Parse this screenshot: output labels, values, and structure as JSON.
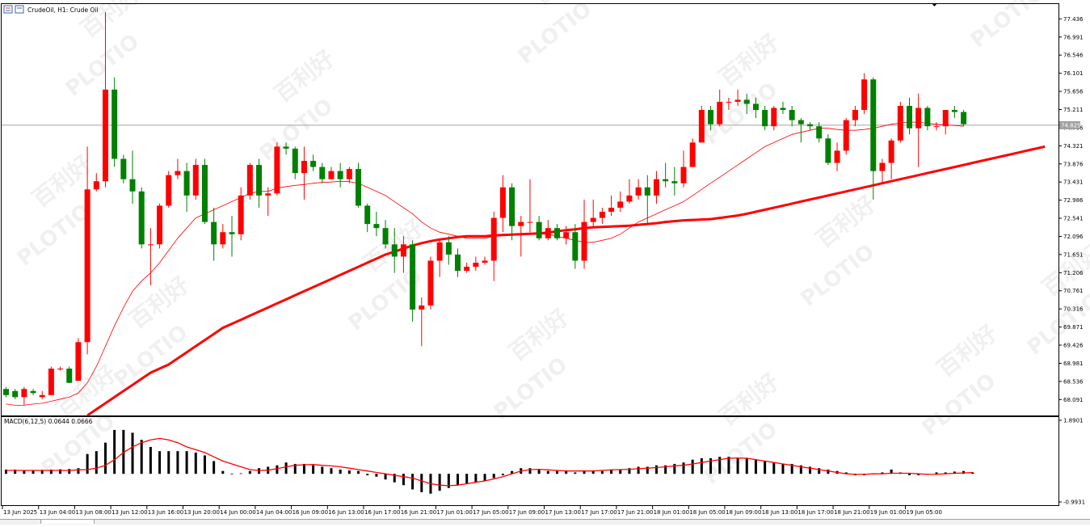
{
  "window": {
    "symbol_title": "CrudeOil, H1:  Crude Oil",
    "current_price": "74.825"
  },
  "watermark": {
    "brand": "PLOTIO",
    "cn": "百利好"
  },
  "colors": {
    "bull": "#ff0000",
    "bear": "#008000",
    "ma_thick": "#ff0000",
    "ma_thin": "#ff0000",
    "macd_hist": "#000000",
    "macd_signal": "#ff0000",
    "price_line": "#a0a0a0",
    "price_tag_bg": "#a0a0a0"
  },
  "chart_data": [
    {
      "type": "candlestick",
      "title": "CrudeOil, H1:  Crude Oil",
      "ylim": [
        67.7,
        77.8
      ],
      "y_ticks": [
        "77.436",
        "76.991",
        "76.546",
        "76.101",
        "75.656",
        "75.211",
        "74.766",
        "74.321",
        "73.876",
        "73.431",
        "72.986",
        "72.541",
        "72.096",
        "71.651",
        "71.206",
        "70.761",
        "70.316",
        "69.871",
        "69.426",
        "68.981",
        "68.536",
        "68.091"
      ],
      "x_labels": [
        "13 Jun 2025",
        "13 Jun 04:00",
        "13 Jun 08:00",
        "13 Jun 12:00",
        "13 Jun 16:00",
        "13 Jun 20:00",
        "14 Jun 00:00",
        "14 Jun 04:00",
        "16 Jun 09:00",
        "16 Jun 13:00",
        "16 Jun 17:00",
        "16 Jun 21:00",
        "17 Jun 01:00",
        "17 Jun 05:00",
        "17 Jun 09:00",
        "17 Jun 13:00",
        "17 Jun 17:00",
        "17 Jun 21:00",
        "18 Jun 01:00",
        "18 Jun 05:00",
        "18 Jun 09:00",
        "18 Jun 13:00",
        "18 Jun 17:00",
        "18 Jun 21:00",
        "19 Jun 01:00",
        "19 Jun 05:00"
      ],
      "current_price": 74.825,
      "candles": [
        [
          68.35,
          68.2,
          68.4,
          68.15
        ],
        [
          68.3,
          68.15,
          68.35,
          68.1
        ],
        [
          68.15,
          68.35,
          68.4,
          67.95
        ],
        [
          68.3,
          68.25,
          68.35,
          68.2
        ],
        [
          68.15,
          68.2,
          68.3,
          68.1
        ],
        [
          68.2,
          68.85,
          68.9,
          68.2
        ],
        [
          68.85,
          68.85,
          68.9,
          68.8
        ],
        [
          68.85,
          68.5,
          68.9,
          68.5
        ],
        [
          68.55,
          69.5,
          69.6,
          68.55
        ],
        [
          69.5,
          73.25,
          74.3,
          69.2
        ],
        [
          73.25,
          73.45,
          73.65,
          73.2
        ],
        [
          73.45,
          75.7,
          77.6,
          73.3
        ],
        [
          75.7,
          74.0,
          76.0,
          73.8
        ],
        [
          74.0,
          73.5,
          74.1,
          73.4
        ],
        [
          73.5,
          73.2,
          74.2,
          72.9
        ],
        [
          73.2,
          71.9,
          73.3,
          71.8
        ],
        [
          71.9,
          71.9,
          72.3,
          70.9
        ],
        [
          71.9,
          72.85,
          72.9,
          71.8
        ],
        [
          72.85,
          73.6,
          73.7,
          72.8
        ],
        [
          73.6,
          73.7,
          74.0,
          73.5
        ],
        [
          73.7,
          73.1,
          73.9,
          72.7
        ],
        [
          73.1,
          73.85,
          74.0,
          73.0
        ],
        [
          73.85,
          72.45,
          74.0,
          72.4
        ],
        [
          72.45,
          71.9,
          72.8,
          71.5
        ],
        [
          71.9,
          72.2,
          72.4,
          71.8
        ],
        [
          72.2,
          72.15,
          72.6,
          71.6
        ],
        [
          72.15,
          73.1,
          73.3,
          72.0
        ],
        [
          73.1,
          73.85,
          73.9,
          73.0
        ],
        [
          73.85,
          73.1,
          74.0,
          72.8
        ],
        [
          73.1,
          73.15,
          73.3,
          72.6
        ],
        [
          73.15,
          74.3,
          74.4,
          73.1
        ],
        [
          74.3,
          74.25,
          74.4,
          74.1
        ],
        [
          74.25,
          73.65,
          74.3,
          73.5
        ],
        [
          73.65,
          73.95,
          74.3,
          73.0
        ],
        [
          73.95,
          73.8,
          74.1,
          73.7
        ],
        [
          73.8,
          73.5,
          73.9,
          73.4
        ],
        [
          73.5,
          73.7,
          73.8,
          73.5
        ],
        [
          73.7,
          73.5,
          73.9,
          73.3
        ],
        [
          73.5,
          73.75,
          73.8,
          73.4
        ],
        [
          73.75,
          72.85,
          73.9,
          72.8
        ],
        [
          72.85,
          72.4,
          72.9,
          72.2
        ],
        [
          72.4,
          72.3,
          72.7,
          72.1
        ],
        [
          72.3,
          71.9,
          72.5,
          71.8
        ],
        [
          71.9,
          71.6,
          72.3,
          71.2
        ],
        [
          71.6,
          71.9,
          72.1,
          71.2
        ],
        [
          71.9,
          70.3,
          72.0,
          70.0
        ],
        [
          70.3,
          70.4,
          70.6,
          69.4
        ],
        [
          70.4,
          71.5,
          71.6,
          70.3
        ],
        [
          71.5,
          71.95,
          72.0,
          71.1
        ],
        [
          71.95,
          71.65,
          72.1,
          71.4
        ],
        [
          71.65,
          71.25,
          71.8,
          71.1
        ],
        [
          71.25,
          71.35,
          71.45,
          71.2
        ],
        [
          71.35,
          71.45,
          71.6,
          71.25
        ],
        [
          71.45,
          71.5,
          71.6,
          71.4
        ],
        [
          71.5,
          72.55,
          72.7,
          71.0
        ],
        [
          72.55,
          73.3,
          73.6,
          72.2
        ],
        [
          73.3,
          72.35,
          73.4,
          72.0
        ],
        [
          72.35,
          72.45,
          72.6,
          71.6
        ],
        [
          72.45,
          72.45,
          73.5,
          72.2
        ],
        [
          72.45,
          72.05,
          72.6,
          72.0
        ],
        [
          72.05,
          72.3,
          72.5,
          72.0
        ],
        [
          72.3,
          72.05,
          72.4,
          72.0
        ],
        [
          72.05,
          72.2,
          72.35,
          71.9
        ],
        [
          72.2,
          71.5,
          72.4,
          71.3
        ],
        [
          71.5,
          72.45,
          73.0,
          71.3
        ],
        [
          72.45,
          72.55,
          73.0,
          72.3
        ],
        [
          72.55,
          72.7,
          72.8,
          72.4
        ],
        [
          72.7,
          72.8,
          73.1,
          72.6
        ],
        [
          72.8,
          72.95,
          73.2,
          72.7
        ],
        [
          72.95,
          73.1,
          73.5,
          72.9
        ],
        [
          73.1,
          73.3,
          73.5,
          73.0
        ],
        [
          73.3,
          73.1,
          73.6,
          72.4
        ],
        [
          73.1,
          73.5,
          73.7,
          72.9
        ],
        [
          73.5,
          73.45,
          73.9,
          73.3
        ],
        [
          73.45,
          73.4,
          73.8,
          73.1
        ],
        [
          73.4,
          73.8,
          74.2,
          73.3
        ],
        [
          73.8,
          74.4,
          74.5,
          73.8
        ],
        [
          74.4,
          75.2,
          75.3,
          74.4
        ],
        [
          75.2,
          74.85,
          75.3,
          74.7
        ],
        [
          74.85,
          75.4,
          75.7,
          74.8
        ],
        [
          75.4,
          75.4,
          75.5,
          75.2
        ],
        [
          75.4,
          75.45,
          75.7,
          75.3
        ],
        [
          75.45,
          75.35,
          75.6,
          75.1
        ],
        [
          75.35,
          75.2,
          75.5,
          75.0
        ],
        [
          75.2,
          74.8,
          75.3,
          74.7
        ],
        [
          74.8,
          75.25,
          75.3,
          74.7
        ],
        [
          75.25,
          75.2,
          75.4,
          75.1
        ],
        [
          75.2,
          74.95,
          75.3,
          74.8
        ],
        [
          74.95,
          74.85,
          75.0,
          74.4
        ],
        [
          74.85,
          74.8,
          74.9,
          74.7
        ],
        [
          74.8,
          74.5,
          74.9,
          74.4
        ],
        [
          74.5,
          73.9,
          74.6,
          73.85
        ],
        [
          73.9,
          74.2,
          74.4,
          73.7
        ],
        [
          74.2,
          74.95,
          75.0,
          74.1
        ],
        [
          74.95,
          75.2,
          75.3,
          74.8
        ],
        [
          75.2,
          75.95,
          76.1,
          75.1
        ],
        [
          75.95,
          73.7,
          76.0,
          73.0
        ],
        [
          73.7,
          73.9,
          74.0,
          73.4
        ],
        [
          73.9,
          74.45,
          74.5,
          73.5
        ],
        [
          74.45,
          75.3,
          75.4,
          74.4
        ],
        [
          75.3,
          74.75,
          75.5,
          74.6
        ],
        [
          74.75,
          75.25,
          75.6,
          73.8
        ],
        [
          75.25,
          74.8,
          75.3,
          74.7
        ],
        [
          74.8,
          74.8,
          74.9,
          74.7
        ],
        [
          74.8,
          75.2,
          75.2,
          74.6
        ],
        [
          75.2,
          75.15,
          75.3,
          75.0
        ],
        [
          75.15,
          74.85,
          75.2,
          74.8
        ]
      ],
      "moving_averages": [
        {
          "period_label": "slow",
          "values_from_index": 9,
          "values": [
            67.7,
            67.85,
            68.0,
            68.15,
            68.3,
            68.45,
            68.6,
            68.75,
            68.85,
            68.95,
            69.1,
            69.25,
            69.4,
            69.55,
            69.7,
            69.85,
            69.95,
            70.05,
            70.15,
            70.25,
            70.35,
            70.45,
            70.55,
            70.65,
            70.75,
            70.85,
            70.95,
            71.05,
            71.15,
            71.25,
            71.35,
            71.45,
            71.55,
            71.65,
            71.72,
            71.8,
            71.87,
            71.93,
            71.98,
            72.02,
            72.05,
            72.08,
            72.1,
            72.1,
            72.1,
            72.12,
            72.13,
            72.14,
            72.15,
            72.16,
            72.17,
            72.19,
            72.22,
            72.25,
            72.27,
            72.3,
            72.32,
            72.33,
            72.34,
            72.35,
            72.36,
            72.38,
            72.4,
            72.42,
            72.45,
            72.47,
            72.49,
            72.5,
            72.51,
            72.52,
            72.55,
            72.58,
            72.61,
            72.65,
            72.7,
            72.75,
            72.8,
            72.85,
            72.9,
            72.95,
            73.0,
            73.05,
            73.1,
            73.15,
            73.2,
            73.25,
            73.3,
            73.35,
            73.4,
            73.45,
            73.5,
            73.55,
            73.6,
            73.65,
            73.7,
            73.75,
            73.8,
            73.85,
            73.9,
            73.95,
            74.0,
            74.05,
            74.1,
            74.15,
            74.2,
            74.25,
            74.3
          ]
        },
        {
          "period_label": "fast",
          "values": [
            67.98,
            67.95,
            67.95,
            67.98,
            68.0,
            68.05,
            68.1,
            68.15,
            68.25,
            68.5,
            68.9,
            69.4,
            69.9,
            70.35,
            70.75,
            71.0,
            71.2,
            71.45,
            71.75,
            72.05,
            72.3,
            72.55,
            72.65,
            72.75,
            72.85,
            72.95,
            73.05,
            73.15,
            73.2,
            73.2,
            73.28,
            73.32,
            73.35,
            73.37,
            73.4,
            73.42,
            73.43,
            73.45,
            73.44,
            73.4,
            73.3,
            73.2,
            73.1,
            72.95,
            72.8,
            72.65,
            72.45,
            72.3,
            72.2,
            72.15,
            72.1,
            72.05,
            72.05,
            72.05,
            72.1,
            72.15,
            72.15,
            72.15,
            72.15,
            72.15,
            72.15,
            72.1,
            72.05,
            72.0,
            71.95,
            71.95,
            72.0,
            72.05,
            72.15,
            72.3,
            72.45,
            72.55,
            72.65,
            72.75,
            72.85,
            72.95,
            73.1,
            73.25,
            73.4,
            73.55,
            73.7,
            73.85,
            74.0,
            74.15,
            74.3,
            74.4,
            74.5,
            74.6,
            74.65,
            74.7,
            74.75,
            74.75,
            74.72,
            74.7,
            74.7,
            74.72,
            74.75,
            74.8,
            74.85,
            74.88,
            74.9,
            74.9,
            74.87,
            74.85,
            74.83,
            74.82,
            74.8
          ]
        }
      ]
    },
    {
      "type": "bar",
      "title": "MACD(6,12,5) 0.0644 0.0666",
      "ylim": [
        -0.9931,
        1.8901
      ],
      "y_ticks": [
        "1.8901",
        "-0.9931"
      ],
      "histogram": [
        0.15,
        0.15,
        0.12,
        0.12,
        0.14,
        0.15,
        0.16,
        0.17,
        0.2,
        0.7,
        0.8,
        1.1,
        1.55,
        1.55,
        1.45,
        1.2,
        0.95,
        0.8,
        0.8,
        0.8,
        0.8,
        0.75,
        0.65,
        0.45,
        0.1,
        0.0,
        0.02,
        0.1,
        0.2,
        0.25,
        0.3,
        0.4,
        0.35,
        0.35,
        0.3,
        0.25,
        0.2,
        0.15,
        0.12,
        0.1,
        -0.05,
        -0.1,
        -0.2,
        -0.3,
        -0.4,
        -0.55,
        -0.65,
        -0.7,
        -0.6,
        -0.5,
        -0.4,
        -0.35,
        -0.3,
        -0.25,
        -0.15,
        -0.05,
        0.1,
        0.2,
        0.2,
        0.15,
        0.1,
        0.1,
        0.1,
        0.05,
        0.1,
        0.1,
        0.1,
        0.15,
        0.15,
        0.2,
        0.25,
        0.25,
        0.3,
        0.3,
        0.35,
        0.4,
        0.5,
        0.55,
        0.55,
        0.6,
        0.6,
        0.55,
        0.55,
        0.5,
        0.45,
        0.4,
        0.35,
        0.35,
        0.3,
        0.25,
        0.2,
        0.15,
        0.1,
        0.05,
        -0.05,
        -0.05,
        0.0,
        0.05,
        0.15,
        0.05,
        -0.05,
        -0.05,
        0.0,
        0.05,
        0.05,
        0.08,
        0.1,
        0.05
      ],
      "signal": [
        0.12,
        0.12,
        0.12,
        0.12,
        0.12,
        0.12,
        0.12,
        0.12,
        0.14,
        0.15,
        0.2,
        0.3,
        0.5,
        0.75,
        0.95,
        1.1,
        1.2,
        1.25,
        1.2,
        1.1,
        0.95,
        0.85,
        0.75,
        0.6,
        0.45,
        0.35,
        0.25,
        0.15,
        0.12,
        0.13,
        0.18,
        0.25,
        0.3,
        0.32,
        0.33,
        0.3,
        0.28,
        0.25,
        0.2,
        0.15,
        0.1,
        0.05,
        0.0,
        -0.05,
        -0.1,
        -0.15,
        -0.25,
        -0.35,
        -0.4,
        -0.42,
        -0.4,
        -0.35,
        -0.3,
        -0.25,
        -0.18,
        -0.1,
        0.0,
        0.1,
        0.15,
        0.16,
        0.14,
        0.12,
        0.1,
        0.1,
        0.1,
        0.1,
        0.12,
        0.14,
        0.15,
        0.16,
        0.18,
        0.2,
        0.22,
        0.25,
        0.28,
        0.3,
        0.35,
        0.4,
        0.45,
        0.5,
        0.55,
        0.56,
        0.55,
        0.5,
        0.45,
        0.4,
        0.35,
        0.3,
        0.25,
        0.2,
        0.15,
        0.1,
        0.05,
        0.0,
        -0.02,
        -0.02,
        0.0,
        0.0,
        0.02,
        0.02,
        0.02,
        0.0,
        -0.02,
        -0.02,
        0.0,
        0.02,
        0.03,
        0.05
      ]
    }
  ]
}
